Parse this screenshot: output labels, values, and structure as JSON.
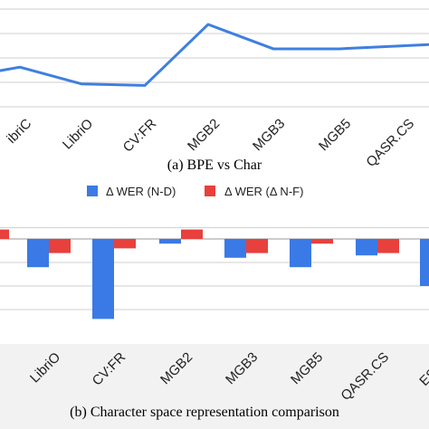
{
  "colors": {
    "line": "#3f7fe0",
    "bar_nd": "#3a7ae6",
    "bar_nf": "#e8403c",
    "grid": "#cfcfcf",
    "lower_bg": "#f2f2f2"
  },
  "chart_data": [
    {
      "type": "line",
      "caption": "(a) BPE vs Char",
      "categories": [
        "LibriC",
        "LibriO",
        "CV:FR",
        "MGB2",
        "MGB3",
        "MGB5",
        "QASR.CS"
      ],
      "category_labels": [
        "ibriC",
        "LibriO",
        "CV:FR",
        "MGB2",
        "MGB3",
        "MGB5",
        "QASR.CS"
      ],
      "series": [
        {
          "values": [
            2.6,
            1.5,
            1.4,
            5.4,
            3.8,
            3.8,
            4.0
          ]
        }
      ],
      "ylim": [
        0,
        7
      ],
      "grid": true,
      "legend": "none"
    },
    {
      "type": "bar",
      "caption": "(b) Character space representation comparison",
      "categories": [
        "LibriO",
        "CV:FR",
        "MGB2",
        "MGB3",
        "MGB5",
        "QASR.CS",
        "ESCWA"
      ],
      "category_labels": [
        "LibriO",
        "CV:FR",
        "MGB2",
        "MGB3",
        "MGB5",
        "QASR.CS",
        "ESCW"
      ],
      "series": [
        {
          "name": "Δ WER (N-D)",
          "values": [
            -1.2,
            -3.4,
            -0.2,
            -0.8,
            -1.2,
            -0.7,
            -2.0
          ]
        },
        {
          "name": "Δ WER (Δ N-F)",
          "values": [
            -0.6,
            -0.4,
            0.4,
            -0.6,
            -0.2,
            -0.6,
            0
          ]
        }
      ],
      "left_partial_nf": 0.4,
      "ylim": [
        -4,
        0.5
      ],
      "grid": true,
      "legend": "top-center"
    }
  ]
}
